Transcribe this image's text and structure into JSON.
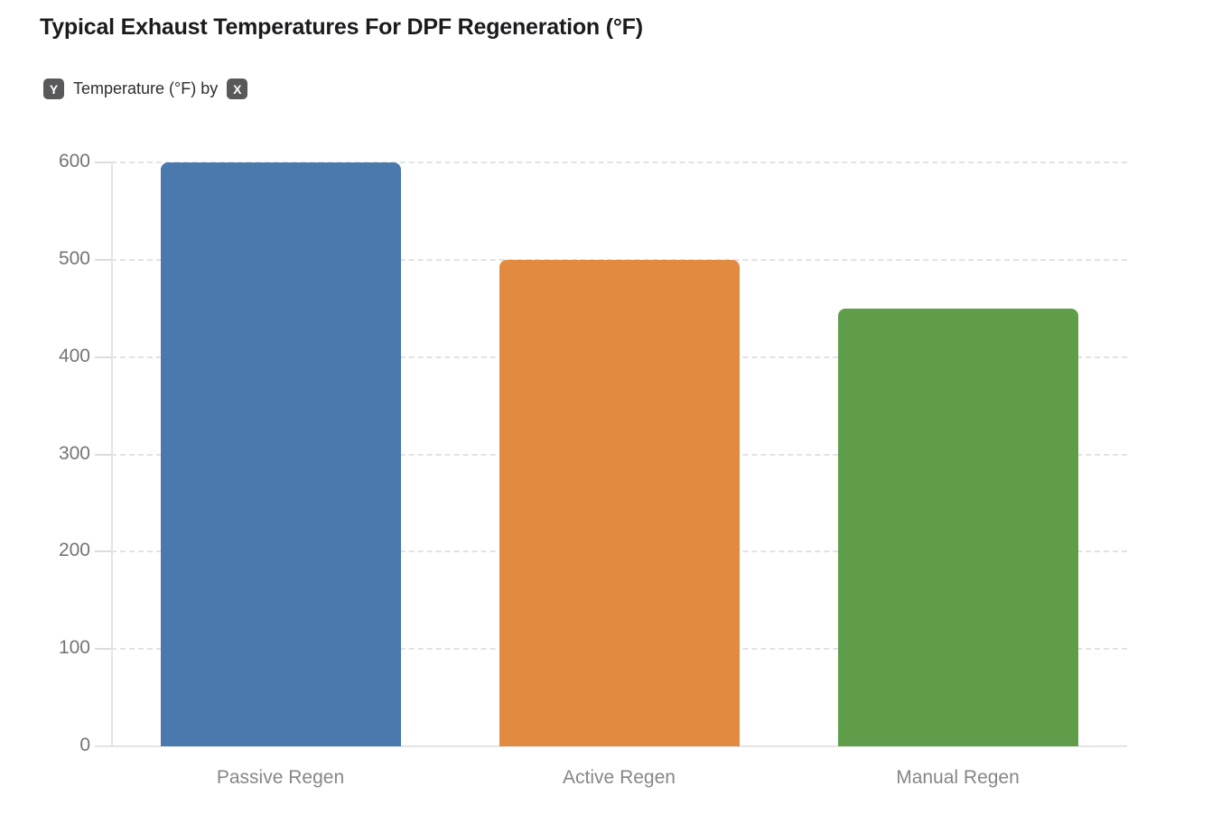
{
  "page": {
    "title": "Typical Exhaust Temperatures For DPF Regeneration (°F)"
  },
  "legend": {
    "y_badge": "Y",
    "text": "Temperature (°F) by",
    "x_badge": "X"
  },
  "chart_data": {
    "type": "bar",
    "title": "Typical Exhaust Temperatures For DPF Regeneration (°F)",
    "categories": [
      "Passive Regen",
      "Active Regen",
      "Manual Regen"
    ],
    "values": [
      600,
      500,
      450
    ],
    "series_label": "Temperature (°F)",
    "xlabel": "",
    "ylabel": "Temperature (°F)",
    "ylim": [
      0,
      600
    ],
    "yticks": [
      0,
      100,
      200,
      300,
      400,
      500,
      600
    ],
    "grid": "horizontal-dashed",
    "legend_position": "none",
    "bar_colors": [
      "#4a79ad",
      "#e18b41",
      "#5f9d4a"
    ]
  },
  "colors": {
    "title_text": "#1b1b1d",
    "legend_text": "#2d2d2f",
    "badge_background": "#59595b",
    "badge_text": "#ffffff",
    "axis_line": "#e4e4e4",
    "gridline": "#e2e2e2",
    "tick_label": "#747476",
    "category_label": "#868688",
    "background": "#ffffff"
  }
}
